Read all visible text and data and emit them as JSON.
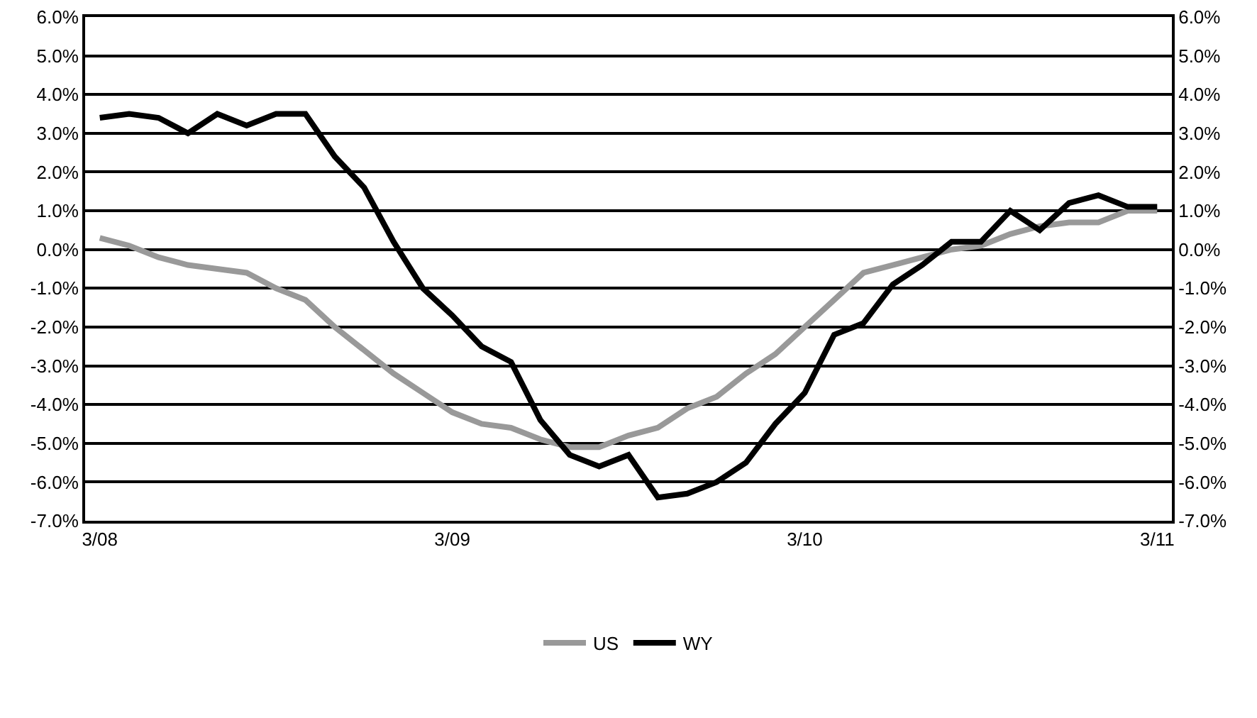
{
  "chart_data": {
    "type": "line",
    "categories": [
      "3/08",
      null,
      null,
      null,
      null,
      null,
      null,
      null,
      null,
      null,
      null,
      null,
      "3/09",
      null,
      null,
      null,
      null,
      null,
      null,
      null,
      null,
      null,
      null,
      null,
      "3/10",
      null,
      null,
      null,
      null,
      null,
      null,
      null,
      null,
      null,
      null,
      null,
      "3/11"
    ],
    "series": [
      {
        "name": "US",
        "color": "#999999",
        "values": [
          0.3,
          0.1,
          -0.2,
          -0.4,
          -0.5,
          -0.6,
          -1.0,
          -1.3,
          -2.0,
          -2.6,
          -3.2,
          -3.7,
          -4.2,
          -4.5,
          -4.6,
          -4.9,
          -5.1,
          -5.1,
          -4.8,
          -4.6,
          -4.1,
          -3.8,
          -3.2,
          -2.7,
          -2.0,
          -1.3,
          -0.6,
          -0.4,
          -0.2,
          0.0,
          0.1,
          0.4,
          0.6,
          0.7,
          0.7,
          1.0,
          1.0
        ]
      },
      {
        "name": "WY",
        "color": "#000000",
        "values": [
          3.4,
          3.5,
          3.4,
          3.0,
          3.5,
          3.2,
          3.5,
          3.5,
          2.4,
          1.6,
          0.2,
          -1.0,
          -1.7,
          -2.5,
          -2.9,
          -4.4,
          -5.3,
          -5.6,
          -5.3,
          -6.4,
          -6.3,
          -6.0,
          -5.5,
          -4.5,
          -3.7,
          -2.2,
          -1.9,
          -0.9,
          -0.4,
          0.2,
          0.2,
          1.0,
          0.5,
          1.2,
          1.4,
          1.1,
          1.1
        ]
      }
    ],
    "ylim": [
      -7,
      6
    ],
    "yticks": [
      {
        "value": -7,
        "label": "-7.0%"
      },
      {
        "value": -6,
        "label": "-6.0%"
      },
      {
        "value": -5,
        "label": "-5.0%"
      },
      {
        "value": -4,
        "label": "-4.0%"
      },
      {
        "value": -3,
        "label": "-3.0%"
      },
      {
        "value": -2,
        "label": "-2.0%"
      },
      {
        "value": -1,
        "label": "-1.0%"
      },
      {
        "value": 0,
        "label": "0.0%"
      },
      {
        "value": 1,
        "label": "1.0%"
      },
      {
        "value": 2,
        "label": "2.0%"
      },
      {
        "value": 3,
        "label": "3.0%"
      },
      {
        "value": 4,
        "label": "4.0%"
      },
      {
        "value": 5,
        "label": "5.0%"
      },
      {
        "value": 6,
        "label": "6.0%"
      }
    ],
    "y2lim": [
      -7,
      6
    ],
    "y2ticks": [
      {
        "value": -7,
        "label": "-7.0%"
      },
      {
        "value": -6,
        "label": "-6.0%"
      },
      {
        "value": -5,
        "label": "-5.0%"
      },
      {
        "value": -4,
        "label": "-4.0%"
      },
      {
        "value": -3,
        "label": "-3.0%"
      },
      {
        "value": -2,
        "label": "-2.0%"
      },
      {
        "value": -1,
        "label": "-1.0%"
      },
      {
        "value": 0,
        "label": "0.0%"
      },
      {
        "value": 1,
        "label": "1.0%"
      },
      {
        "value": 2,
        "label": "2.0%"
      },
      {
        "value": 3,
        "label": "3.0%"
      },
      {
        "value": 4,
        "label": "4.0%"
      },
      {
        "value": 5,
        "label": "5.0%"
      },
      {
        "value": 6,
        "label": "6.0%"
      }
    ],
    "grid": "y",
    "legend": "bottom",
    "marker": "none",
    "line_style": "solid"
  }
}
